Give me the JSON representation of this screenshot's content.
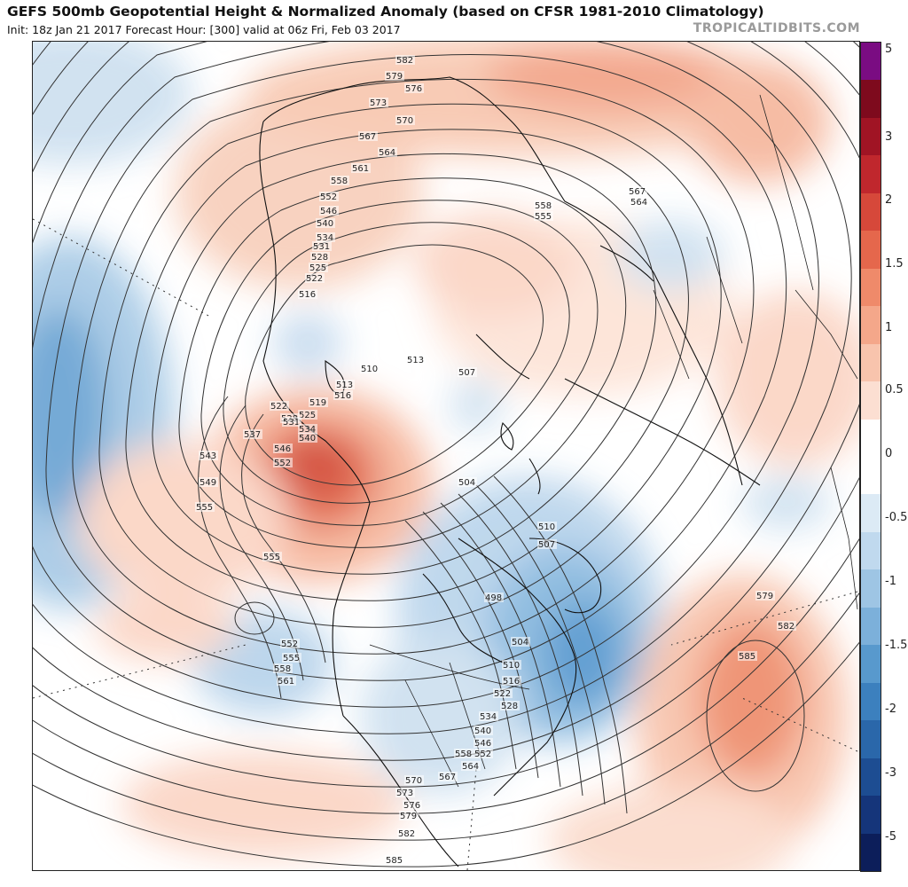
{
  "title": "GEFS 500mb Geopotential Height & Normalized Anomaly (based on CFSR 1981-2010 Climatology)",
  "subtitle": "Init: 18z Jan 21 2017   Forecast Hour: [300]   valid at 06z Fri, Feb 03 2017",
  "watermark": "TROPICALTIDBITS.COM",
  "colorbar": {
    "segments": [
      {
        "color": "#7a0c82"
      },
      {
        "color": "#7e0a1d"
      },
      {
        "color": "#a01424"
      },
      {
        "color": "#c0272d"
      },
      {
        "color": "#d6483a"
      },
      {
        "color": "#e5674c"
      },
      {
        "color": "#ef8a6a"
      },
      {
        "color": "#f4a78a"
      },
      {
        "color": "#f8c4ad"
      },
      {
        "color": "#fcdfd2"
      },
      {
        "color": "#ffffff"
      },
      {
        "color": "#ffffff"
      },
      {
        "color": "#dceaf5"
      },
      {
        "color": "#c0d9ee"
      },
      {
        "color": "#9ec5e4"
      },
      {
        "color": "#7cb0da"
      },
      {
        "color": "#5899cd"
      },
      {
        "color": "#3c80be"
      },
      {
        "color": "#2a67aa"
      },
      {
        "color": "#1d4d92"
      },
      {
        "color": "#15357a"
      },
      {
        "color": "#0c1e5a"
      }
    ],
    "labels": [
      "5",
      "3",
      "2",
      "1.5",
      "1",
      "0.5",
      "0",
      "-0.5",
      "-1",
      "-1.5",
      "-2",
      "-3",
      "-5"
    ],
    "label_values": [
      5,
      3,
      2,
      1.5,
      1,
      0.5,
      0,
      -0.5,
      -1,
      -1.5,
      -2,
      -3,
      -5
    ]
  },
  "contour_labels": [
    {
      "text": "582"
    },
    {
      "text": "579"
    },
    {
      "text": "576"
    },
    {
      "text": "573"
    },
    {
      "text": "570"
    },
    {
      "text": "567"
    },
    {
      "text": "564"
    },
    {
      "text": "561"
    },
    {
      "text": "558"
    },
    {
      "text": "552"
    },
    {
      "text": "546"
    },
    {
      "text": "540"
    },
    {
      "text": "534"
    },
    {
      "text": "531"
    },
    {
      "text": "528"
    },
    {
      "text": "525"
    },
    {
      "text": "522"
    },
    {
      "text": "516"
    },
    {
      "text": "510"
    },
    {
      "text": "513"
    },
    {
      "text": "507"
    },
    {
      "text": "513"
    },
    {
      "text": "516"
    },
    {
      "text": "519"
    },
    {
      "text": "522"
    },
    {
      "text": "525"
    },
    {
      "text": "528"
    },
    {
      "text": "531"
    },
    {
      "text": "534"
    },
    {
      "text": "537"
    },
    {
      "text": "540"
    },
    {
      "text": "543"
    },
    {
      "text": "546"
    },
    {
      "text": "552"
    },
    {
      "text": "549"
    },
    {
      "text": "555"
    },
    {
      "text": "555"
    },
    {
      "text": "504"
    },
    {
      "text": "510"
    },
    {
      "text": "507"
    },
    {
      "text": "498"
    },
    {
      "text": "504"
    },
    {
      "text": "510"
    },
    {
      "text": "516"
    },
    {
      "text": "522"
    },
    {
      "text": "528"
    },
    {
      "text": "534"
    },
    {
      "text": "540"
    },
    {
      "text": "546"
    },
    {
      "text": "552"
    },
    {
      "text": "558"
    },
    {
      "text": "564"
    },
    {
      "text": "567"
    },
    {
      "text": "570"
    },
    {
      "text": "573"
    },
    {
      "text": "576"
    },
    {
      "text": "579"
    },
    {
      "text": "582"
    },
    {
      "text": "585"
    },
    {
      "text": "552"
    },
    {
      "text": "555"
    },
    {
      "text": "558"
    },
    {
      "text": "561"
    },
    {
      "text": "567"
    },
    {
      "text": "564"
    },
    {
      "text": "558"
    },
    {
      "text": "555"
    },
    {
      "text": "579"
    },
    {
      "text": "582"
    },
    {
      "text": "585"
    }
  ]
}
